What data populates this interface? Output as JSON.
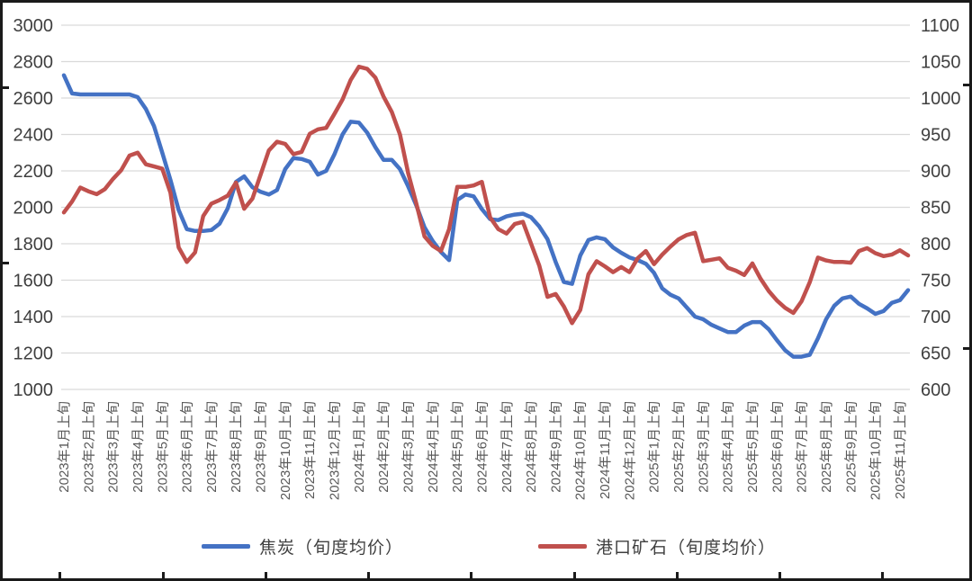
{
  "chart_data": {
    "type": "line",
    "title": "",
    "grid": "horizontal",
    "legend_position": "bottom",
    "x_unit": "旬 (ten-day period), 3 points per month",
    "x_tick_labels": [
      "2023年1月上旬",
      "2023年2月上旬",
      "2023年3月上旬",
      "2023年4月上旬",
      "2023年5月上旬",
      "2023年6月上旬",
      "2023年7月上旬",
      "2023年8月上旬",
      "2023年9月上旬",
      "2023年10月上旬",
      "2023年11月上旬",
      "2023年12月上旬",
      "2024年1月上旬",
      "2024年2月上旬",
      "2024年3月上旬",
      "2024年4月上旬",
      "2024年5月上旬",
      "2024年6月上旬",
      "2024年7月上旬",
      "2024年8月上旬",
      "2024年9月上旬",
      "2024年10月上旬",
      "2024年11月上旬",
      "2024年12月上旬",
      "2025年1月上旬",
      "2025年2月上旬",
      "2025年3月上旬",
      "2025年4月上旬",
      "2025年5月上旬",
      "2025年6月上旬",
      "2025年7月上旬",
      "2025年8月上旬",
      "2025年9月上旬",
      "2025年10月上旬",
      "2025年11月上旬"
    ],
    "points_per_label": 3,
    "left_axis": {
      "min": 1000,
      "max": 3000,
      "step": 200,
      "ticks": [
        3000,
        2800,
        2600,
        2400,
        2200,
        2000,
        1800,
        1600,
        1400,
        1200,
        1000
      ]
    },
    "right_axis": {
      "min": 600,
      "max": 1100,
      "step": 50,
      "ticks": [
        1100,
        1050,
        1000,
        950,
        900,
        850,
        800,
        750,
        700,
        650,
        600
      ]
    },
    "grid_color": "#d9d9d9",
    "tick_text_color": "#3f3f3f",
    "x_label_color": "#595959",
    "series": [
      {
        "name": "焦炭（旬度均价）",
        "axis": "left",
        "color": "#4472c4",
        "values": [
          2725,
          2625,
          2620,
          2620,
          2620,
          2620,
          2620,
          2620,
          2620,
          2605,
          2540,
          2445,
          2300,
          2150,
          1985,
          1880,
          1870,
          1870,
          1875,
          1910,
          1995,
          2140,
          2170,
          2110,
          2085,
          2070,
          2095,
          2210,
          2270,
          2265,
          2250,
          2180,
          2200,
          2290,
          2400,
          2470,
          2465,
          2410,
          2330,
          2260,
          2260,
          2210,
          2115,
          2010,
          1890,
          1815,
          1755,
          1710,
          2040,
          2070,
          2060,
          1990,
          1935,
          1930,
          1950,
          1960,
          1965,
          1945,
          1895,
          1825,
          1700,
          1590,
          1580,
          1735,
          1820,
          1835,
          1825,
          1780,
          1750,
          1725,
          1710,
          1690,
          1640,
          1555,
          1520,
          1500,
          1450,
          1400,
          1385,
          1355,
          1335,
          1315,
          1315,
          1350,
          1370,
          1370,
          1330,
          1270,
          1215,
          1180,
          1180,
          1190,
          1280,
          1385,
          1460,
          1500,
          1510,
          1470,
          1445,
          1415,
          1430,
          1475,
          1490,
          1545
        ]
      },
      {
        "name": "港口矿石（旬度均价）",
        "axis": "right",
        "color": "#c0504d",
        "values": [
          843,
          858,
          877,
          872,
          868,
          875,
          889,
          901,
          921,
          925,
          909,
          906,
          903,
          870,
          795,
          775,
          788,
          838,
          855,
          860,
          866,
          884,
          848,
          862,
          895,
          928,
          940,
          937,
          923,
          926,
          951,
          957,
          959,
          978,
          998,
          1025,
          1043,
          1040,
          1028,
          1002,
          981,
          950,
          897,
          855,
          810,
          797,
          790,
          820,
          878,
          878,
          880,
          885,
          836,
          820,
          814,
          827,
          830,
          800,
          770,
          727,
          731,
          714,
          691,
          709,
          758,
          776,
          769,
          761,
          768,
          761,
          780,
          790,
          772,
          785,
          796,
          806,
          812,
          815,
          776,
          778,
          780,
          767,
          763,
          757,
          773,
          752,
          735,
          722,
          712,
          705,
          721,
          747,
          781,
          777,
          775,
          775,
          774,
          790,
          794,
          787,
          783,
          785,
          791,
          784
        ]
      }
    ]
  },
  "legend": {
    "items": [
      {
        "label": "焦炭（旬度均价）",
        "color": "#4472c4"
      },
      {
        "label": "港口矿石（旬度均价）",
        "color": "#c0504d"
      }
    ]
  }
}
